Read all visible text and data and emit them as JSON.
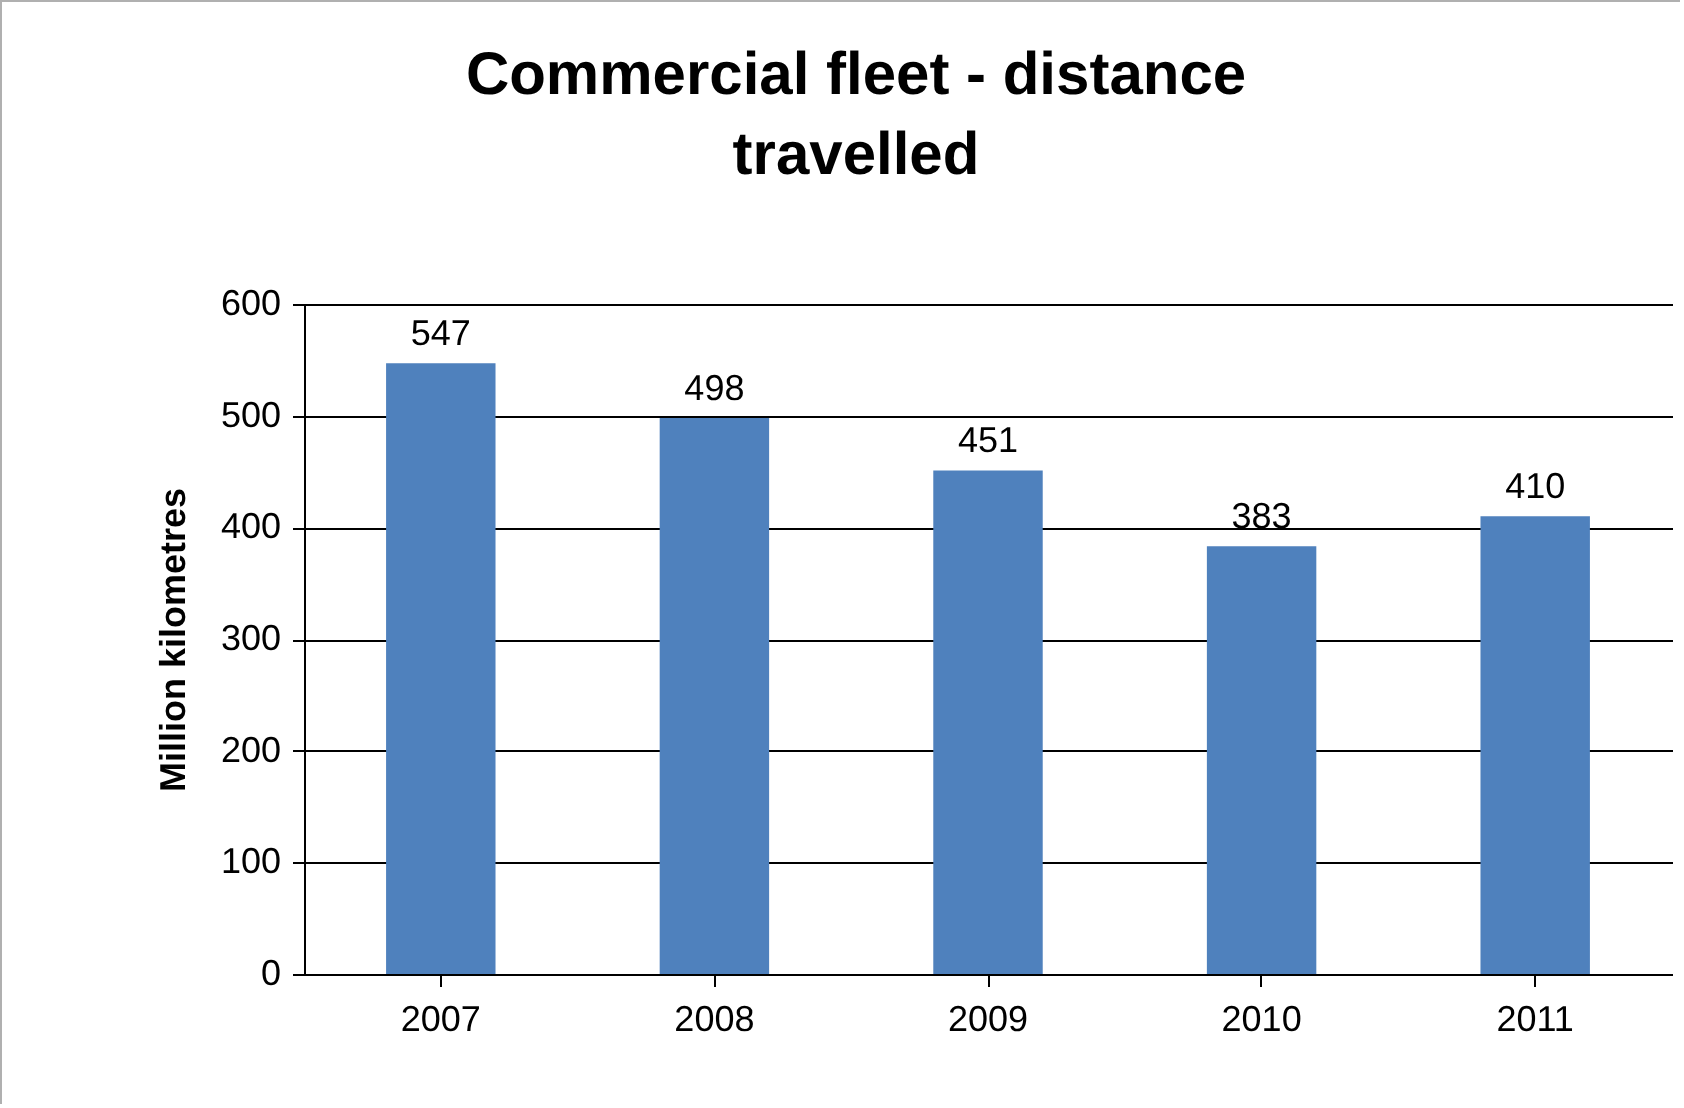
{
  "chart_data": {
    "type": "bar",
    "title": "Commercial fleet - distance travelled",
    "ylabel": "Million kilometres",
    "categories": [
      "2007",
      "2008",
      "2009",
      "2010",
      "2011"
    ],
    "values": [
      547,
      498,
      451,
      383,
      410
    ],
    "color": "#4f81bd",
    "ylim": [
      0,
      600
    ],
    "yticks": [
      0,
      100,
      200,
      300,
      400,
      500,
      600
    ],
    "grid": "y",
    "data_labels": true
  }
}
